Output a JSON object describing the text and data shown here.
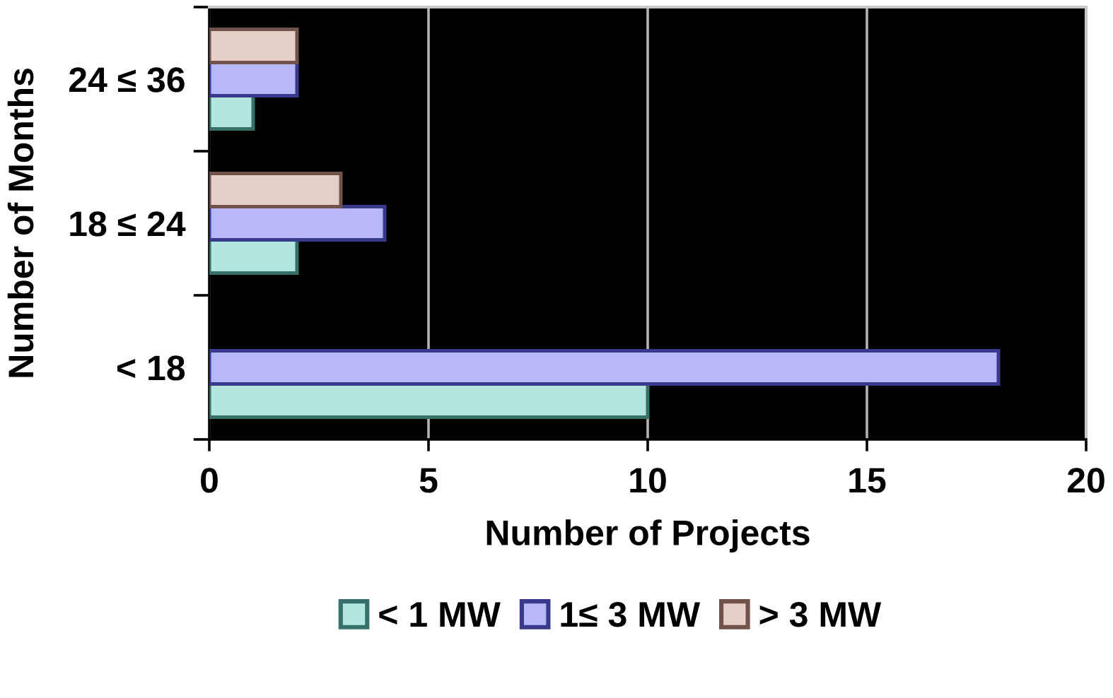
{
  "chart_data": {
    "type": "bar",
    "orientation": "horizontal",
    "xlabel": "Number of Projects",
    "ylabel": "Number of Months",
    "categories": [
      "24 ≤ 36",
      "18 ≤ 24",
      "< 18"
    ],
    "series": [
      {
        "name": "< 1 MW",
        "color": "#b4e6e0",
        "values": [
          1,
          2,
          10
        ]
      },
      {
        "name": "1≤ 3 MW",
        "color": "#b8b8f8",
        "values": [
          2,
          4,
          18
        ]
      },
      {
        "name": "> 3 MW",
        "color": "#e6cfc8",
        "values": [
          2,
          3,
          null
        ]
      }
    ],
    "xlim": [
      0,
      20
    ],
    "xticks": [
      0,
      5,
      10,
      15,
      20
    ],
    "grid": "x",
    "legend": "bottom"
  }
}
